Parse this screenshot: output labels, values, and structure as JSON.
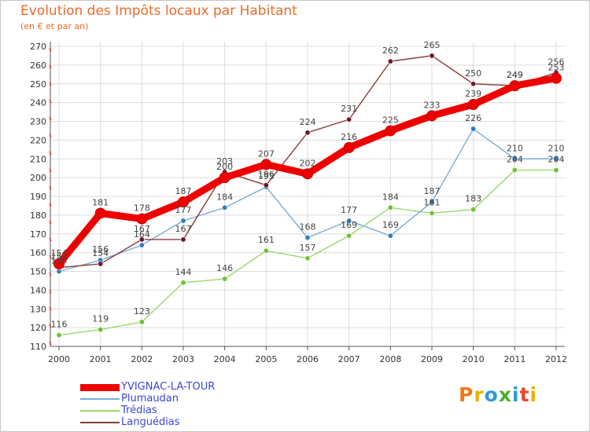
{
  "title": "Evolution des Impôts locaux par Habitant",
  "subtitle": "(en € et par an)",
  "logo": {
    "text": "Proxiti",
    "letter_colors": [
      "#f07a1a",
      "#e8b400",
      "#2e9bd6",
      "#4caf2a",
      "#2e9bd6",
      "#e64a2a",
      "#e8b400"
    ]
  },
  "chart_data": {
    "type": "line",
    "title": "Evolution des Impôts locaux par Habitant",
    "subtitle": "(en € et par an)",
    "xlabel": "",
    "ylabel": "",
    "x": [
      "2000",
      "2001",
      "2002",
      "2003",
      "2004",
      "2005",
      "2006",
      "2007",
      "2008",
      "2009",
      "2010",
      "2011",
      "2012"
    ],
    "ylim": [
      110,
      270
    ],
    "yticks": [
      110,
      120,
      130,
      140,
      150,
      160,
      170,
      180,
      190,
      200,
      210,
      220,
      230,
      240,
      250,
      260,
      270
    ],
    "grid": true,
    "legend_position": "bottom-left",
    "series": [
      {
        "name": "Trédias",
        "color": "#9ad86a",
        "marker": "#6cc23a",
        "values": [
          116,
          119,
          123,
          144,
          146,
          161,
          157,
          169,
          184,
          181,
          183,
          204,
          204
        ],
        "labels": [
          "116",
          "119",
          "123",
          "144",
          "146",
          "161",
          "157",
          "169",
          "184",
          "181",
          "183",
          "204",
          "204"
        ]
      },
      {
        "name": "Plumaudan",
        "color": "#7aaed8",
        "marker": "#2c7cc4",
        "values": [
          150,
          156,
          164,
          177,
          184,
          195,
          168,
          177,
          169,
          187,
          226,
          210,
          210
        ],
        "labels": [
          "150",
          "156",
          "164",
          "177",
          "184",
          "195",
          "168",
          "177",
          "169",
          "187",
          "226",
          "210",
          "210"
        ]
      },
      {
        "name": "Languédias",
        "color": "#8a3a3a",
        "marker": "#6a1a28",
        "values": [
          152,
          154,
          167,
          167,
          203,
          196,
          224,
          231,
          262,
          265,
          250,
          249,
          256
        ],
        "labels": [
          "152",
          "154",
          "167",
          "167",
          "203",
          "196",
          "224",
          "231",
          "262",
          "265",
          "250",
          "249",
          "256"
        ]
      },
      {
        "name": "YVIGNAC-LA-TOUR",
        "color": "#ee0000",
        "marker": "#ee0000",
        "values": [
          154,
          181,
          178,
          187,
          200,
          207,
          202,
          216,
          225,
          233,
          239,
          249,
          253
        ],
        "labels": [
          "154",
          "181",
          "178",
          "187",
          "200",
          "207",
          "202",
          "216",
          "225",
          "233",
          "239",
          "249",
          "253"
        ]
      }
    ],
    "legend_order": [
      "YVIGNAC-LA-TOUR",
      "Plumaudan",
      "Trédias",
      "Languédias"
    ]
  }
}
